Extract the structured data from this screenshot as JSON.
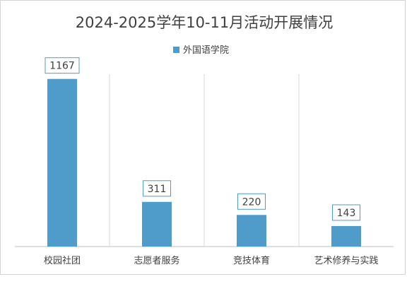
{
  "chart_data": {
    "type": "bar",
    "title": "2024-2025学年10-11月活动开展情况",
    "categories": [
      "校园社团",
      "志愿者服务",
      "竞技体育",
      "艺术修养与实践"
    ],
    "series": [
      {
        "name": "外国语学院",
        "values": [
          1167,
          311,
          220,
          143
        ]
      }
    ],
    "ylim": [
      0,
      1200
    ],
    "grid": false,
    "category_separators": true,
    "legend_position": "top",
    "data_labels": true,
    "colors": {
      "bar": "#4f9ccb",
      "label_border": "#4f9ccb",
      "label_text": "#404040",
      "separator": "#d9d9d9",
      "axis": "#bfbfbf",
      "title": "#404040"
    }
  }
}
